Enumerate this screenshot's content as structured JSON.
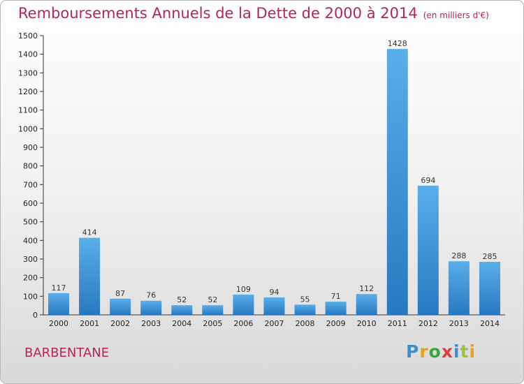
{
  "header": {
    "title": "Remboursements Annuels de la Dette de 2000 à 2014",
    "unit": "(en milliers d'€)"
  },
  "commune": "BARBENTANE",
  "logo": {
    "letters": [
      "P",
      "r",
      "o",
      "x",
      "i",
      "t",
      "i"
    ]
  },
  "colors": {
    "title": "#b5245a",
    "bar_top": "#5aaee9",
    "bar_bottom": "#2878c0"
  },
  "chart_data": {
    "type": "bar",
    "categories": [
      "2000",
      "2001",
      "2002",
      "2003",
      "2004",
      "2005",
      "2006",
      "2007",
      "2008",
      "2009",
      "2010",
      "2011",
      "2012",
      "2013",
      "2014"
    ],
    "values": [
      117,
      414,
      87,
      76,
      52,
      52,
      109,
      94,
      55,
      71,
      112,
      1428,
      694,
      288,
      285
    ],
    "title": "Remboursements Annuels de la Dette de 2000 à 2014",
    "ylim": [
      0,
      1500
    ],
    "yticks": [
      0,
      100,
      200,
      300,
      400,
      500,
      600,
      700,
      800,
      900,
      1000,
      1100,
      1200,
      1300,
      1400,
      1500
    ],
    "grid": false,
    "data_labels": true
  }
}
